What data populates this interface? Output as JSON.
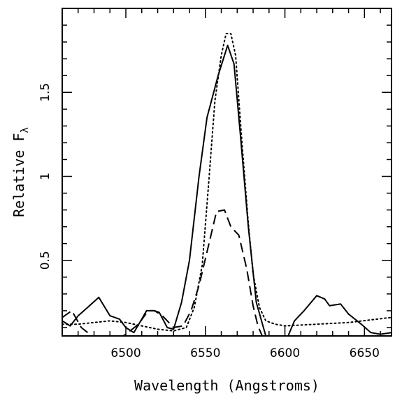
{
  "chart_data": {
    "type": "line",
    "title": "",
    "xlabel": "Wavelength (Angstroms)",
    "ylabel": "Relative F",
    "ylabel_subscript": "λ",
    "xlim": [
      6460,
      6667
    ],
    "ylim": [
      0.05,
      2.0
    ],
    "xticks": [
      6500,
      6550,
      6600,
      6650
    ],
    "xtick_labels": [
      "6500",
      "6550",
      "6600",
      "6650"
    ],
    "yticks": [
      0.5,
      1,
      1.5
    ],
    "ytick_labels": [
      "0.5",
      "1",
      "1.5"
    ],
    "grid": false,
    "legend": "none",
    "series": [
      {
        "style": "solid",
        "color": "#000000",
        "points": [
          [
            6460,
            0.14
          ],
          [
            6465,
            0.11
          ],
          [
            6470,
            0.17
          ],
          [
            6476,
            0.22
          ],
          [
            6483,
            0.28
          ],
          [
            6490,
            0.17
          ],
          [
            6496,
            0.15
          ],
          [
            6500,
            0.1
          ],
          [
            6505,
            0.07
          ],
          [
            6510,
            0.15
          ],
          [
            6513,
            0.2
          ],
          [
            6518,
            0.2
          ],
          [
            6521,
            0.19
          ],
          [
            6526,
            0.1
          ],
          [
            6530,
            0.09
          ],
          [
            6535,
            0.25
          ],
          [
            6540,
            0.5
          ],
          [
            6546,
            1.0
          ],
          [
            6551,
            1.35
          ],
          [
            6558,
            1.6
          ],
          [
            6564,
            1.78
          ],
          [
            6568,
            1.67
          ],
          [
            6572,
            1.25
          ],
          [
            6577,
            0.7
          ],
          [
            6582,
            0.25
          ],
          [
            6588,
            0.05
          ],
          [
            6593,
            -0.05
          ],
          [
            6598,
            -0.05
          ],
          [
            6602,
            0.05
          ],
          [
            6606,
            0.14
          ],
          [
            6612,
            0.2
          ],
          [
            6620,
            0.29
          ],
          [
            6625,
            0.27
          ],
          [
            6628,
            0.23
          ],
          [
            6635,
            0.24
          ],
          [
            6640,
            0.18
          ],
          [
            6648,
            0.12
          ],
          [
            6654,
            0.07
          ],
          [
            6660,
            0.06
          ],
          [
            6667,
            0.07
          ]
        ]
      },
      {
        "style": "dashed",
        "color": "#000000",
        "points": [
          [
            6460,
            0.16
          ],
          [
            6466,
            0.2
          ],
          [
            6472,
            0.1
          ],
          [
            6480,
            0.04
          ],
          [
            6490,
            0.0
          ],
          [
            6500,
            0.06
          ],
          [
            6508,
            0.12
          ],
          [
            6514,
            0.2
          ],
          [
            6518,
            0.2
          ],
          [
            6523,
            0.17
          ],
          [
            6530,
            0.1
          ],
          [
            6536,
            0.11
          ],
          [
            6541,
            0.2
          ],
          [
            6546,
            0.35
          ],
          [
            6551,
            0.55
          ],
          [
            6557,
            0.79
          ],
          [
            6562,
            0.8
          ],
          [
            6566,
            0.7
          ],
          [
            6571,
            0.65
          ],
          [
            6576,
            0.45
          ],
          [
            6580,
            0.23
          ],
          [
            6583,
            0.11
          ],
          [
            6588,
            0.0
          ],
          [
            6594,
            -0.05
          ],
          [
            6600,
            -0.05
          ],
          [
            6612,
            -0.02
          ],
          [
            6626,
            0.0
          ],
          [
            6640,
            0.05
          ],
          [
            6650,
            0.02
          ],
          [
            6660,
            0.0
          ],
          [
            6667,
            0.0
          ]
        ]
      },
      {
        "style": "dotted",
        "color": "#000000",
        "points": [
          [
            6460,
            0.12
          ],
          [
            6470,
            0.12
          ],
          [
            6480,
            0.13
          ],
          [
            6490,
            0.14
          ],
          [
            6500,
            0.13
          ],
          [
            6510,
            0.11
          ],
          [
            6520,
            0.09
          ],
          [
            6530,
            0.08
          ],
          [
            6538,
            0.1
          ],
          [
            6543,
            0.22
          ],
          [
            6548,
            0.47
          ],
          [
            6552,
            0.95
          ],
          [
            6556,
            1.45
          ],
          [
            6560,
            1.72
          ],
          [
            6563,
            1.85
          ],
          [
            6566,
            1.85
          ],
          [
            6569,
            1.72
          ],
          [
            6573,
            1.2
          ],
          [
            6577,
            0.72
          ],
          [
            6580,
            0.42
          ],
          [
            6584,
            0.22
          ],
          [
            6588,
            0.14
          ],
          [
            6594,
            0.12
          ],
          [
            6600,
            0.11
          ],
          [
            6620,
            0.12
          ],
          [
            6640,
            0.13
          ],
          [
            6667,
            0.16
          ]
        ]
      }
    ]
  }
}
